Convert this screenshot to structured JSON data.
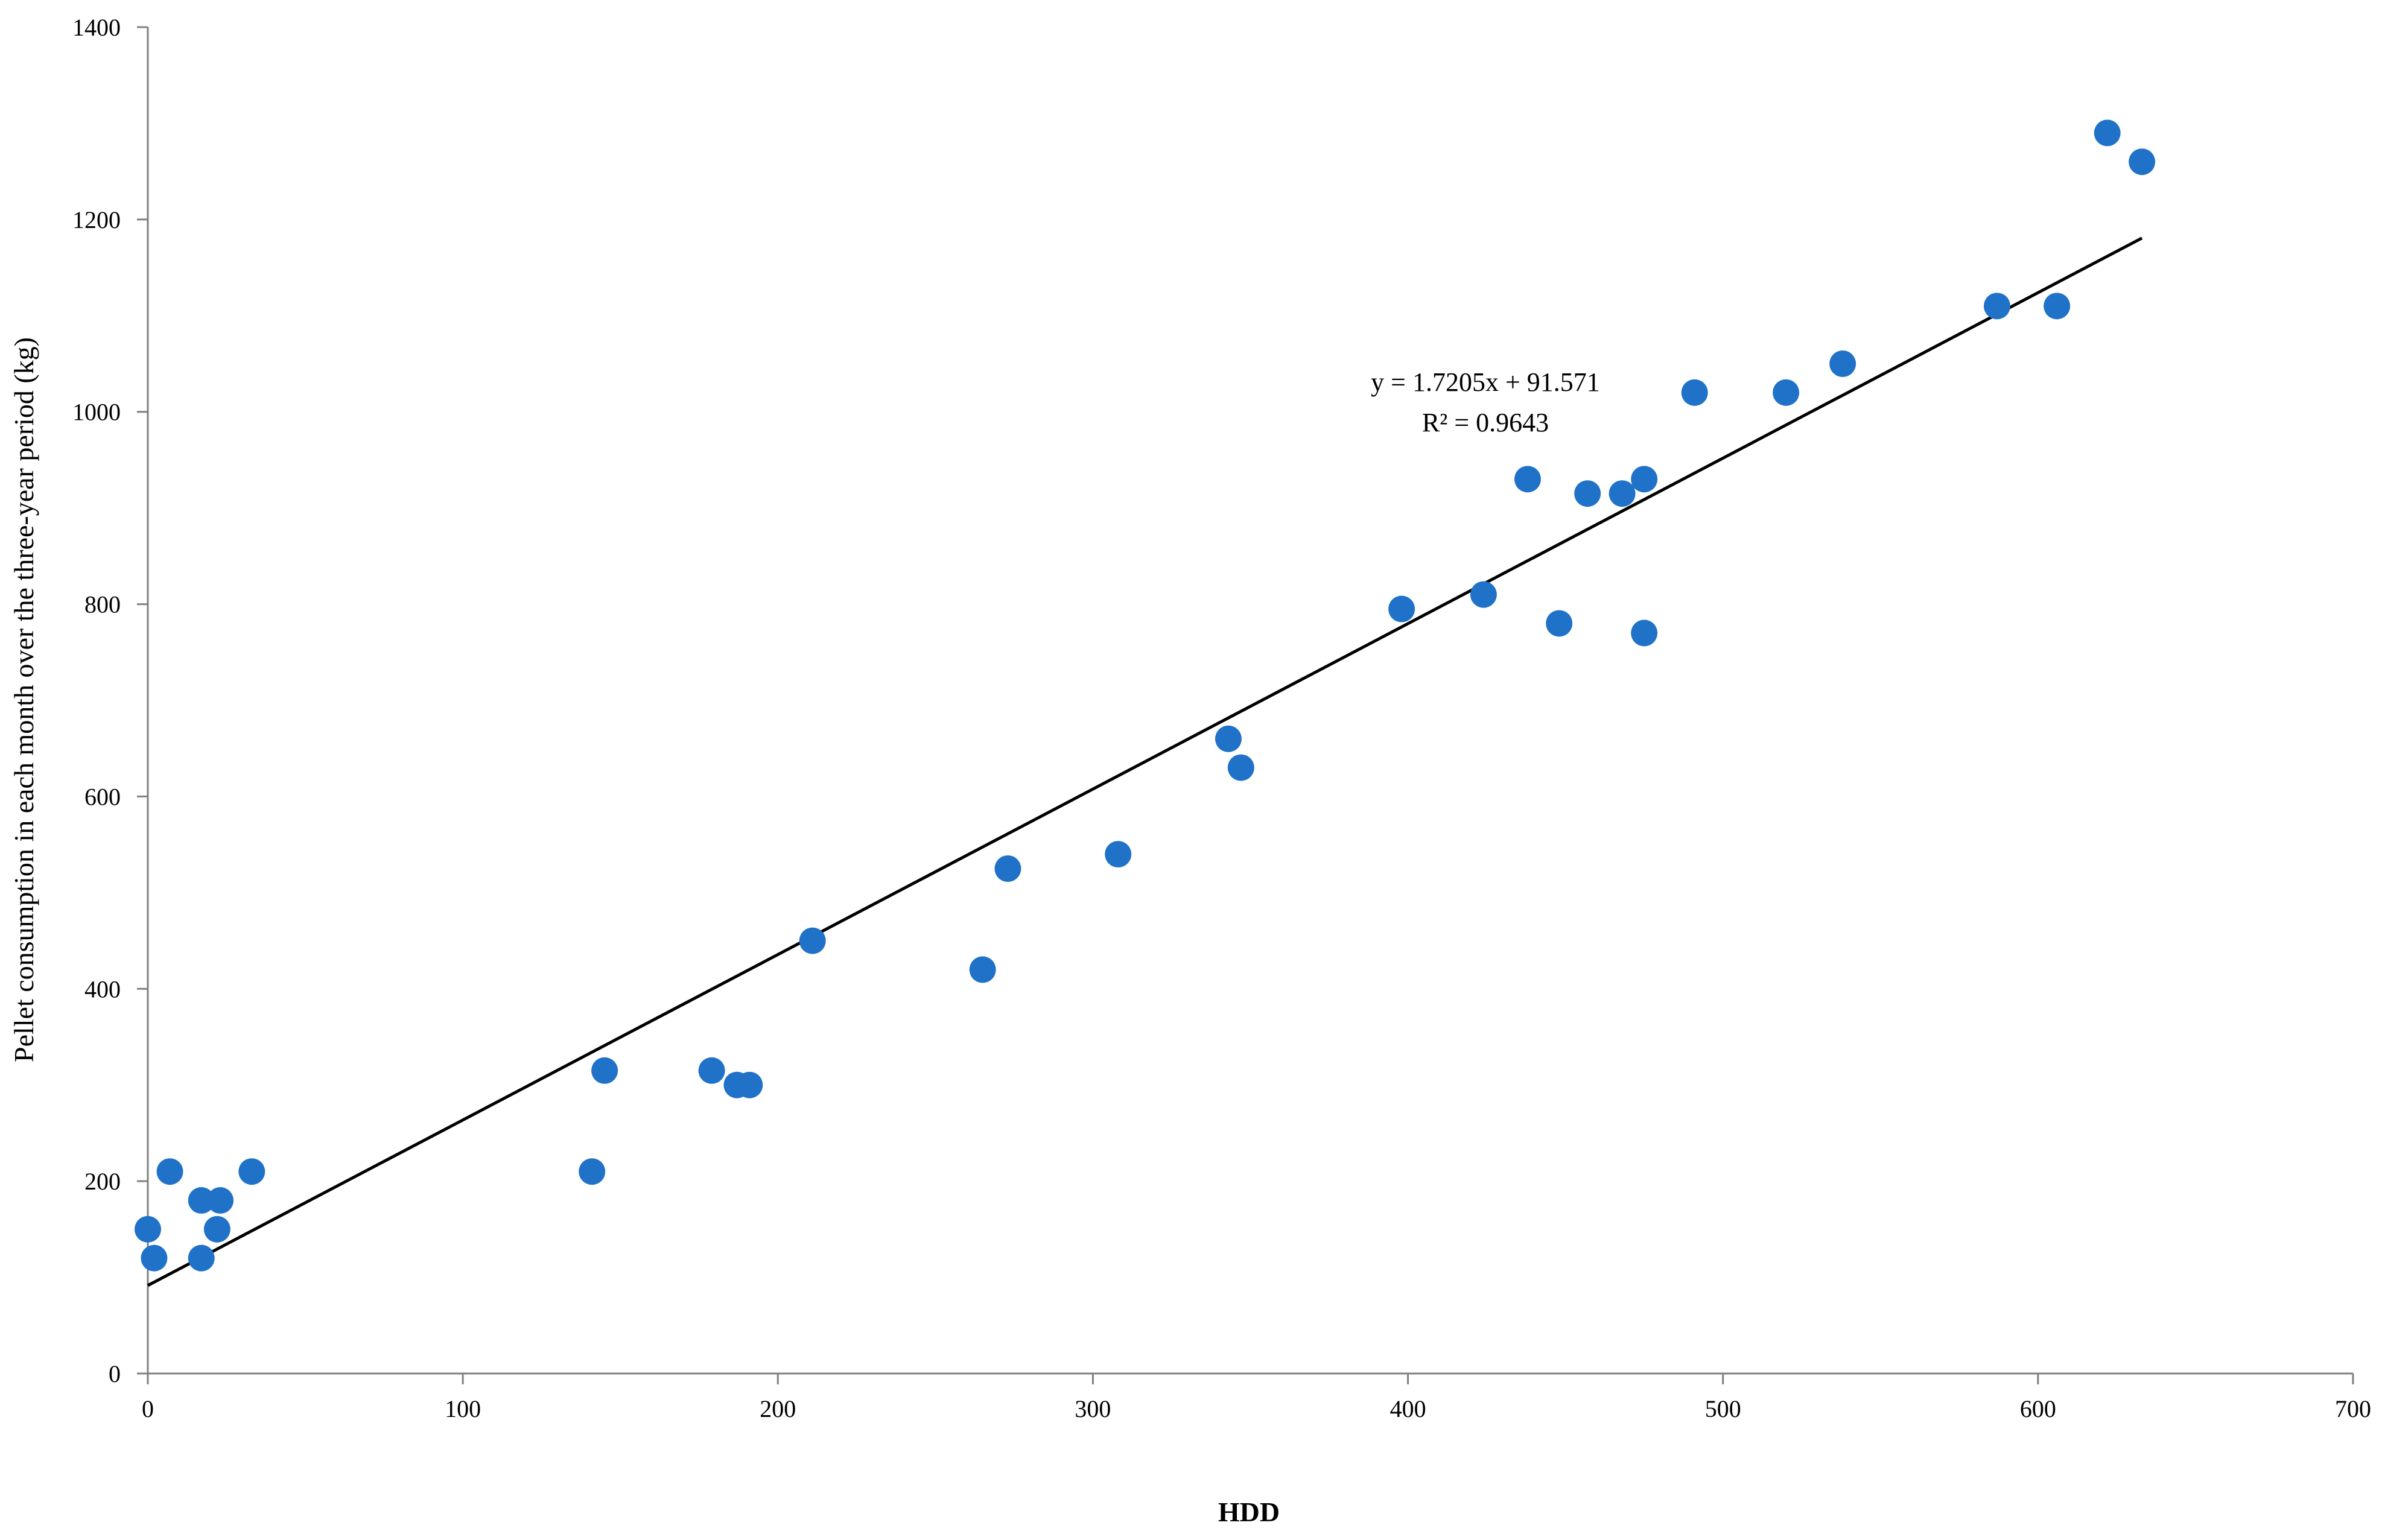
{
  "chart_data": {
    "type": "scatter",
    "xlabel": "HDD",
    "ylabel": "Pellet consumption in each month over the three-year period  (kg)",
    "xlim": [
      0,
      700
    ],
    "ylim": [
      0,
      1400
    ],
    "x_ticks": [
      0,
      100,
      200,
      300,
      400,
      500,
      600,
      700
    ],
    "y_ticks": [
      0,
      200,
      400,
      600,
      800,
      1000,
      1200,
      1400
    ],
    "grid": false,
    "legend": "none",
    "marker_color": "#1f72c8",
    "trendline_color": "#000000",
    "series": [
      {
        "points": [
          {
            "x": 0,
            "y": 150
          },
          {
            "x": 2,
            "y": 120
          },
          {
            "x": 7,
            "y": 210
          },
          {
            "x": 17,
            "y": 180
          },
          {
            "x": 17,
            "y": 120
          },
          {
            "x": 22,
            "y": 150
          },
          {
            "x": 23,
            "y": 180
          },
          {
            "x": 33,
            "y": 210
          },
          {
            "x": 141,
            "y": 210
          },
          {
            "x": 145,
            "y": 315
          },
          {
            "x": 179,
            "y": 315
          },
          {
            "x": 187,
            "y": 300
          },
          {
            "x": 191,
            "y": 300
          },
          {
            "x": 211,
            "y": 450
          },
          {
            "x": 265,
            "y": 420
          },
          {
            "x": 273,
            "y": 525
          },
          {
            "x": 308,
            "y": 540
          },
          {
            "x": 343,
            "y": 660
          },
          {
            "x": 347,
            "y": 630
          },
          {
            "x": 398,
            "y": 795
          },
          {
            "x": 424,
            "y": 810
          },
          {
            "x": 438,
            "y": 930
          },
          {
            "x": 448,
            "y": 780
          },
          {
            "x": 457,
            "y": 915
          },
          {
            "x": 468,
            "y": 915
          },
          {
            "x": 475,
            "y": 930
          },
          {
            "x": 475,
            "y": 770
          },
          {
            "x": 491,
            "y": 1020
          },
          {
            "x": 520,
            "y": 1020
          },
          {
            "x": 538,
            "y": 1050
          },
          {
            "x": 587,
            "y": 1110
          },
          {
            "x": 606,
            "y": 1110
          },
          {
            "x": 622,
            "y": 1290
          },
          {
            "x": 633,
            "y": 1260
          }
        ]
      }
    ],
    "trendline": {
      "slope": 1.7205,
      "intercept": 91.571,
      "x_range": [
        0,
        633
      ],
      "equation_text": "y = 1.7205x + 91.571",
      "r2_text": "R² = 0.9643"
    }
  }
}
